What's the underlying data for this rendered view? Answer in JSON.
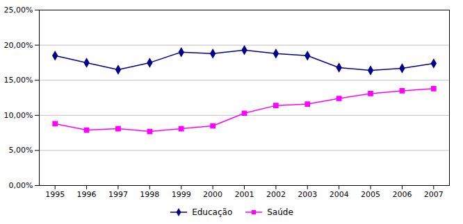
{
  "chart_data": {
    "type": "line",
    "x": [
      1995,
      1996,
      1997,
      1998,
      1999,
      2000,
      2001,
      2002,
      2003,
      2004,
      2005,
      2006,
      2007
    ],
    "series": [
      {
        "name": "Educação",
        "color": "#00008B",
        "marker": "diamond",
        "values": [
          0.185,
          0.175,
          0.165,
          0.175,
          0.19,
          0.188,
          0.193,
          0.188,
          0.185,
          0.168,
          0.164,
          0.167,
          0.174
        ]
      },
      {
        "name": "Saúde",
        "color": "#FF00FF",
        "marker": "square",
        "values": [
          0.088,
          0.079,
          0.081,
          0.077,
          0.081,
          0.085,
          0.103,
          0.114,
          0.116,
          0.124,
          0.131,
          0.135,
          0.138
        ]
      }
    ],
    "xlim": [
      1994.5,
      2007.5
    ],
    "xticks": [
      1995,
      1996,
      1997,
      1998,
      1999,
      2000,
      2001,
      2002,
      2003,
      2004,
      2005,
      2006,
      2007
    ],
    "ylim": [
      0.0,
      0.25
    ],
    "yticks": [
      {
        "value": 0.0,
        "label": "0,00%"
      },
      {
        "value": 0.05,
        "label": "5,00%"
      },
      {
        "value": 0.1,
        "label": "10,00%"
      },
      {
        "value": 0.15,
        "label": "15,00%"
      },
      {
        "value": 0.2,
        "label": "20,00%"
      },
      {
        "value": 0.25,
        "label": "25,00%"
      }
    ],
    "grid": true,
    "legend": "bottom"
  }
}
